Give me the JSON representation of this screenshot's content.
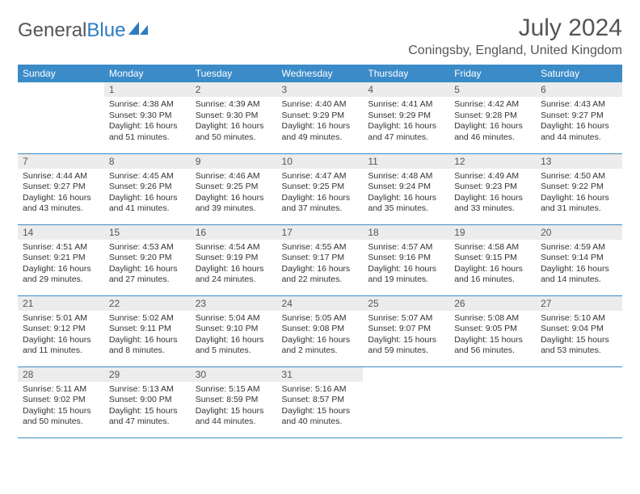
{
  "logo": {
    "text_gray": "General",
    "text_blue": "Blue"
  },
  "title": "July 2024",
  "location": "Coningsby, England, United Kingdom",
  "colors": {
    "header_bg": "#3b8bc8",
    "header_fg": "#ffffff",
    "daynum_bg": "#ececec",
    "text": "#333333",
    "rule": "#3b8bc8"
  },
  "day_headers": [
    "Sunday",
    "Monday",
    "Tuesday",
    "Wednesday",
    "Thursday",
    "Friday",
    "Saturday"
  ],
  "weeks": [
    [
      null,
      {
        "n": "1",
        "sunrise": "Sunrise: 4:38 AM",
        "sunset": "Sunset: 9:30 PM",
        "dl1": "Daylight: 16 hours",
        "dl2": "and 51 minutes."
      },
      {
        "n": "2",
        "sunrise": "Sunrise: 4:39 AM",
        "sunset": "Sunset: 9:30 PM",
        "dl1": "Daylight: 16 hours",
        "dl2": "and 50 minutes."
      },
      {
        "n": "3",
        "sunrise": "Sunrise: 4:40 AM",
        "sunset": "Sunset: 9:29 PM",
        "dl1": "Daylight: 16 hours",
        "dl2": "and 49 minutes."
      },
      {
        "n": "4",
        "sunrise": "Sunrise: 4:41 AM",
        "sunset": "Sunset: 9:29 PM",
        "dl1": "Daylight: 16 hours",
        "dl2": "and 47 minutes."
      },
      {
        "n": "5",
        "sunrise": "Sunrise: 4:42 AM",
        "sunset": "Sunset: 9:28 PM",
        "dl1": "Daylight: 16 hours",
        "dl2": "and 46 minutes."
      },
      {
        "n": "6",
        "sunrise": "Sunrise: 4:43 AM",
        "sunset": "Sunset: 9:27 PM",
        "dl1": "Daylight: 16 hours",
        "dl2": "and 44 minutes."
      }
    ],
    [
      {
        "n": "7",
        "sunrise": "Sunrise: 4:44 AM",
        "sunset": "Sunset: 9:27 PM",
        "dl1": "Daylight: 16 hours",
        "dl2": "and 43 minutes."
      },
      {
        "n": "8",
        "sunrise": "Sunrise: 4:45 AM",
        "sunset": "Sunset: 9:26 PM",
        "dl1": "Daylight: 16 hours",
        "dl2": "and 41 minutes."
      },
      {
        "n": "9",
        "sunrise": "Sunrise: 4:46 AM",
        "sunset": "Sunset: 9:25 PM",
        "dl1": "Daylight: 16 hours",
        "dl2": "and 39 minutes."
      },
      {
        "n": "10",
        "sunrise": "Sunrise: 4:47 AM",
        "sunset": "Sunset: 9:25 PM",
        "dl1": "Daylight: 16 hours",
        "dl2": "and 37 minutes."
      },
      {
        "n": "11",
        "sunrise": "Sunrise: 4:48 AM",
        "sunset": "Sunset: 9:24 PM",
        "dl1": "Daylight: 16 hours",
        "dl2": "and 35 minutes."
      },
      {
        "n": "12",
        "sunrise": "Sunrise: 4:49 AM",
        "sunset": "Sunset: 9:23 PM",
        "dl1": "Daylight: 16 hours",
        "dl2": "and 33 minutes."
      },
      {
        "n": "13",
        "sunrise": "Sunrise: 4:50 AM",
        "sunset": "Sunset: 9:22 PM",
        "dl1": "Daylight: 16 hours",
        "dl2": "and 31 minutes."
      }
    ],
    [
      {
        "n": "14",
        "sunrise": "Sunrise: 4:51 AM",
        "sunset": "Sunset: 9:21 PM",
        "dl1": "Daylight: 16 hours",
        "dl2": "and 29 minutes."
      },
      {
        "n": "15",
        "sunrise": "Sunrise: 4:53 AM",
        "sunset": "Sunset: 9:20 PM",
        "dl1": "Daylight: 16 hours",
        "dl2": "and 27 minutes."
      },
      {
        "n": "16",
        "sunrise": "Sunrise: 4:54 AM",
        "sunset": "Sunset: 9:19 PM",
        "dl1": "Daylight: 16 hours",
        "dl2": "and 24 minutes."
      },
      {
        "n": "17",
        "sunrise": "Sunrise: 4:55 AM",
        "sunset": "Sunset: 9:17 PM",
        "dl1": "Daylight: 16 hours",
        "dl2": "and 22 minutes."
      },
      {
        "n": "18",
        "sunrise": "Sunrise: 4:57 AM",
        "sunset": "Sunset: 9:16 PM",
        "dl1": "Daylight: 16 hours",
        "dl2": "and 19 minutes."
      },
      {
        "n": "19",
        "sunrise": "Sunrise: 4:58 AM",
        "sunset": "Sunset: 9:15 PM",
        "dl1": "Daylight: 16 hours",
        "dl2": "and 16 minutes."
      },
      {
        "n": "20",
        "sunrise": "Sunrise: 4:59 AM",
        "sunset": "Sunset: 9:14 PM",
        "dl1": "Daylight: 16 hours",
        "dl2": "and 14 minutes."
      }
    ],
    [
      {
        "n": "21",
        "sunrise": "Sunrise: 5:01 AM",
        "sunset": "Sunset: 9:12 PM",
        "dl1": "Daylight: 16 hours",
        "dl2": "and 11 minutes."
      },
      {
        "n": "22",
        "sunrise": "Sunrise: 5:02 AM",
        "sunset": "Sunset: 9:11 PM",
        "dl1": "Daylight: 16 hours",
        "dl2": "and 8 minutes."
      },
      {
        "n": "23",
        "sunrise": "Sunrise: 5:04 AM",
        "sunset": "Sunset: 9:10 PM",
        "dl1": "Daylight: 16 hours",
        "dl2": "and 5 minutes."
      },
      {
        "n": "24",
        "sunrise": "Sunrise: 5:05 AM",
        "sunset": "Sunset: 9:08 PM",
        "dl1": "Daylight: 16 hours",
        "dl2": "and 2 minutes."
      },
      {
        "n": "25",
        "sunrise": "Sunrise: 5:07 AM",
        "sunset": "Sunset: 9:07 PM",
        "dl1": "Daylight: 15 hours",
        "dl2": "and 59 minutes."
      },
      {
        "n": "26",
        "sunrise": "Sunrise: 5:08 AM",
        "sunset": "Sunset: 9:05 PM",
        "dl1": "Daylight: 15 hours",
        "dl2": "and 56 minutes."
      },
      {
        "n": "27",
        "sunrise": "Sunrise: 5:10 AM",
        "sunset": "Sunset: 9:04 PM",
        "dl1": "Daylight: 15 hours",
        "dl2": "and 53 minutes."
      }
    ],
    [
      {
        "n": "28",
        "sunrise": "Sunrise: 5:11 AM",
        "sunset": "Sunset: 9:02 PM",
        "dl1": "Daylight: 15 hours",
        "dl2": "and 50 minutes."
      },
      {
        "n": "29",
        "sunrise": "Sunrise: 5:13 AM",
        "sunset": "Sunset: 9:00 PM",
        "dl1": "Daylight: 15 hours",
        "dl2": "and 47 minutes."
      },
      {
        "n": "30",
        "sunrise": "Sunrise: 5:15 AM",
        "sunset": "Sunset: 8:59 PM",
        "dl1": "Daylight: 15 hours",
        "dl2": "and 44 minutes."
      },
      {
        "n": "31",
        "sunrise": "Sunrise: 5:16 AM",
        "sunset": "Sunset: 8:57 PM",
        "dl1": "Daylight: 15 hours",
        "dl2": "and 40 minutes."
      },
      null,
      null,
      null
    ]
  ]
}
